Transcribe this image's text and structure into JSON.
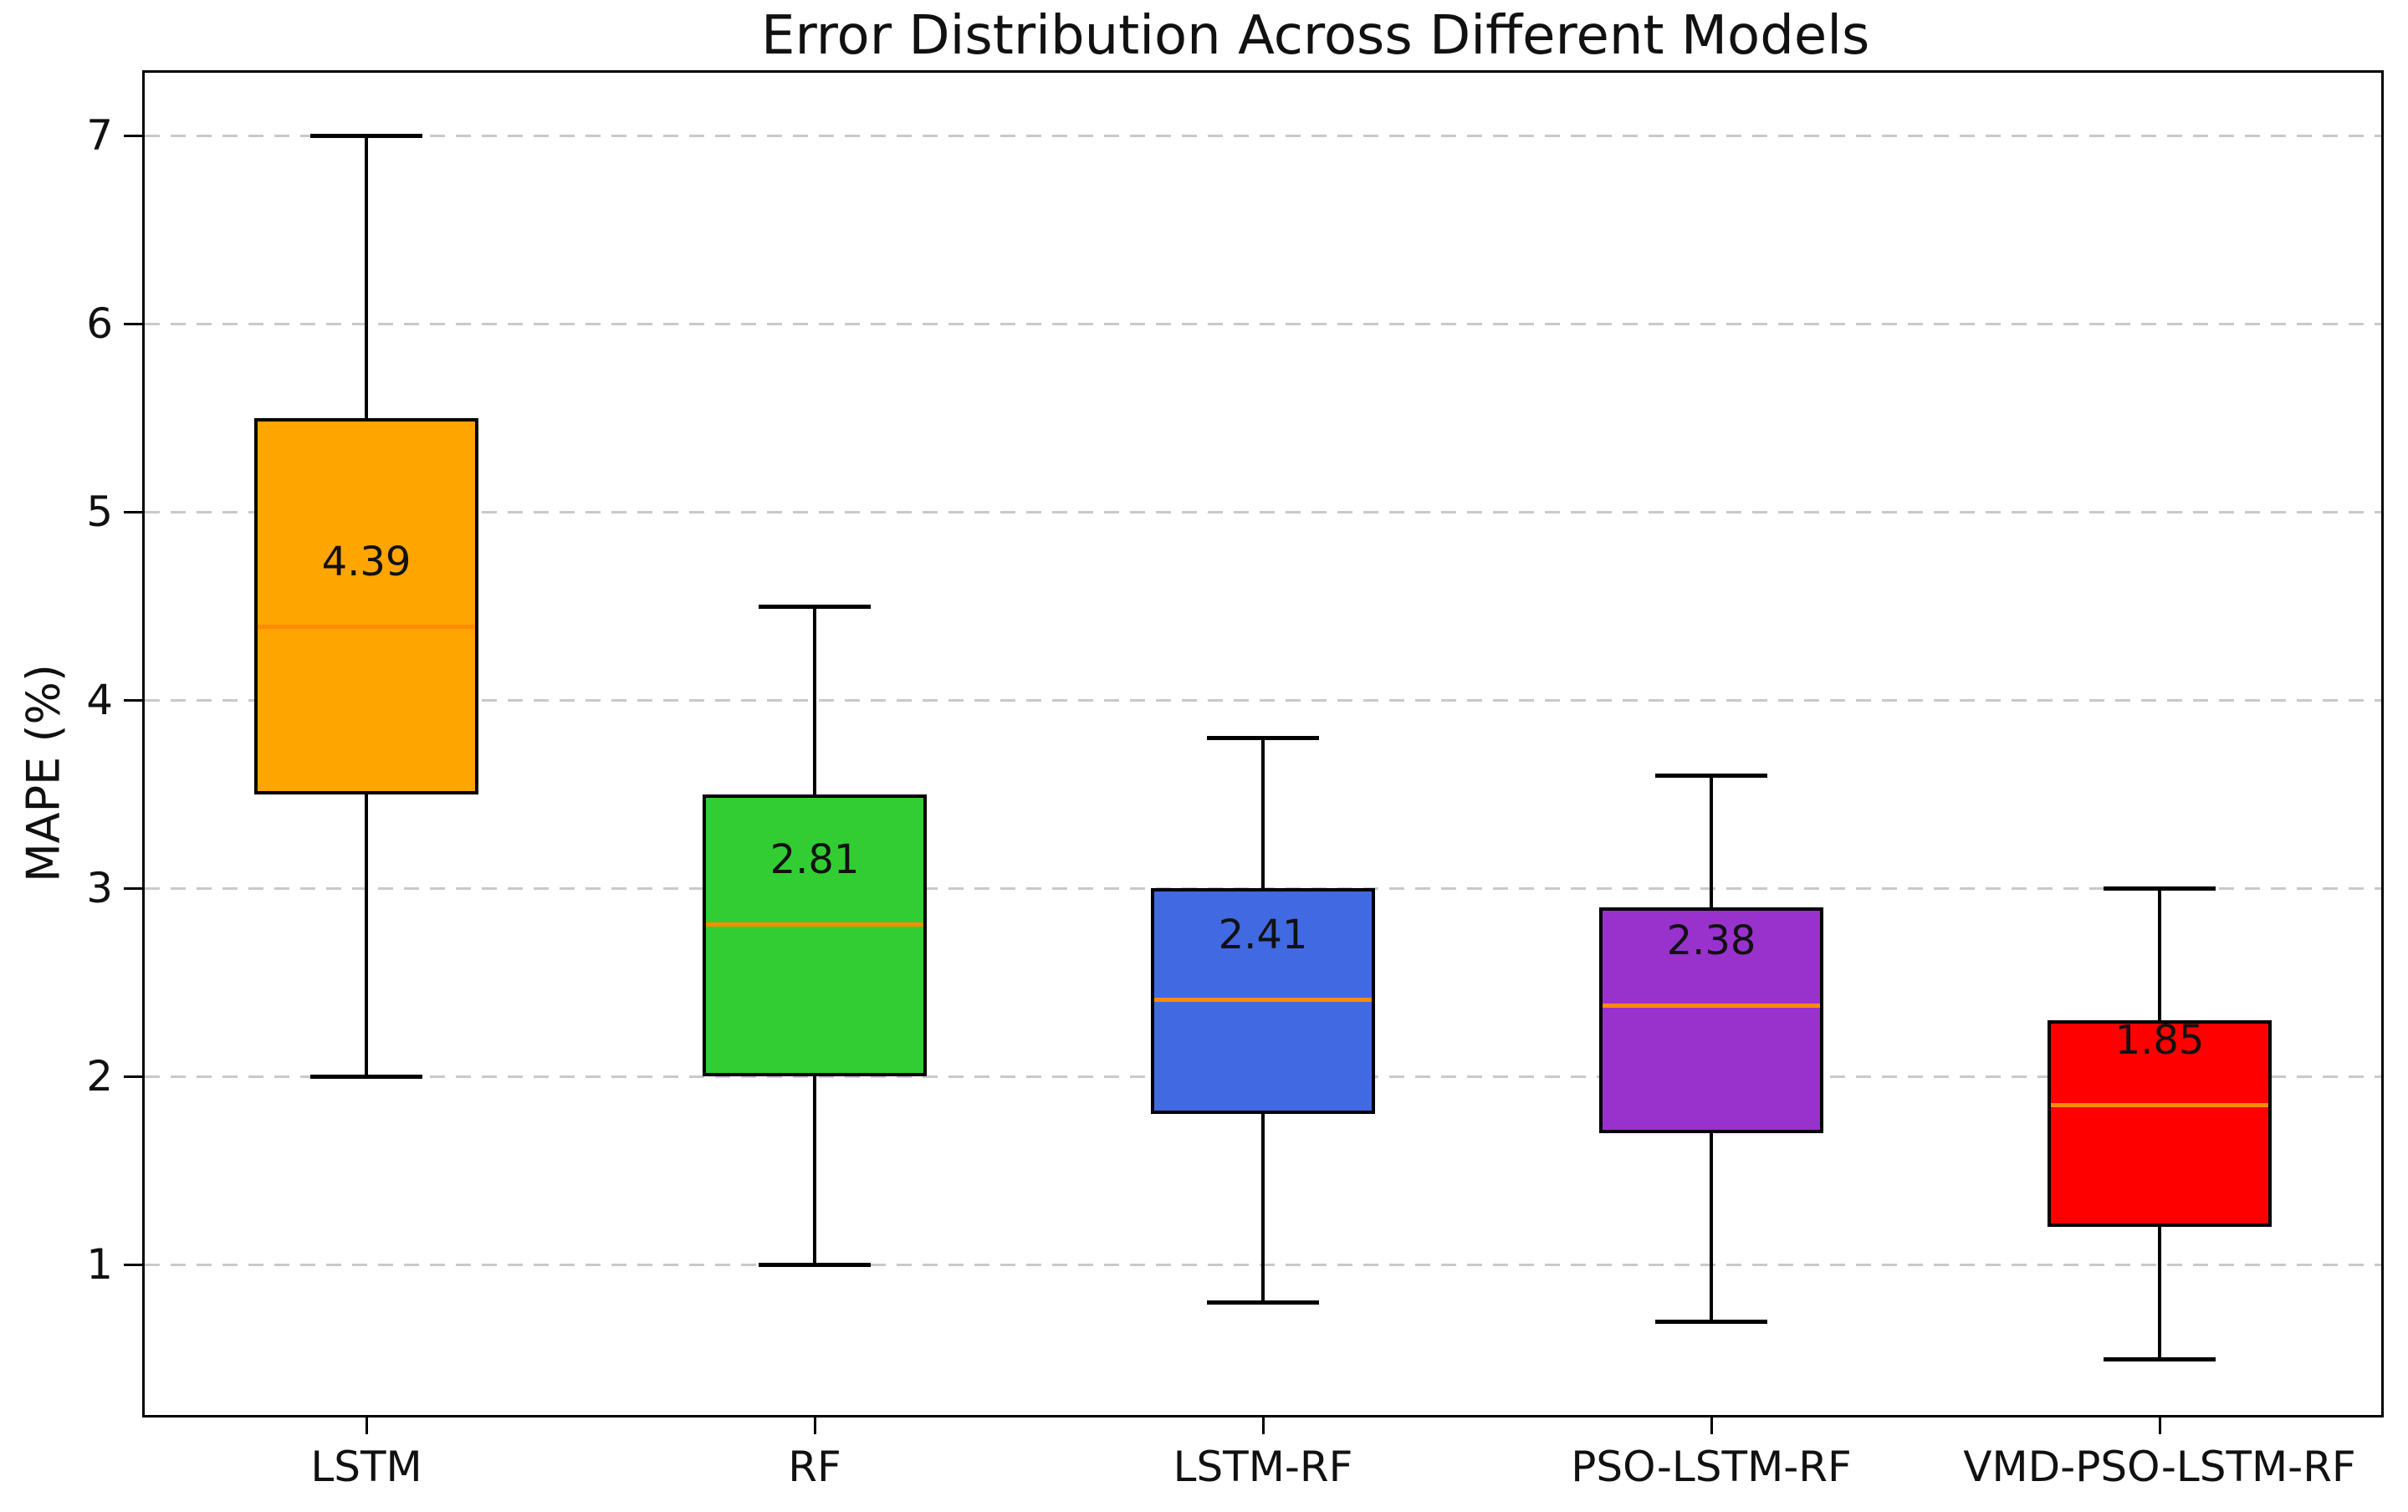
{
  "chart_data": {
    "type": "boxplot",
    "title": "Error Distribution Across Different Models",
    "ylabel": "MAPE (%)",
    "xlabel": "",
    "categories": [
      "LSTM",
      "RF",
      "LSTM-RF",
      "PSO-LSTM-RF",
      "VMD-PSO-LSTM-RF"
    ],
    "y_ticks": [
      "1",
      "2",
      "3",
      "4",
      "5",
      "6",
      "7"
    ],
    "ylim": [
      0.19,
      7.35
    ],
    "grid": {
      "axis": "y",
      "style": "dashed",
      "color": "#c9c9c9"
    },
    "colors": {
      "median_line": "#FF8C00",
      "box_edge": "#000000",
      "whisker": "#000000",
      "text": "#111111",
      "background": "#FFFFFF"
    },
    "series": [
      {
        "label": "LSTM",
        "whisker_low": 2.0,
        "q1": 3.5,
        "median": 4.39,
        "q3": 5.5,
        "whisker_high": 7.0,
        "color": "#FFA500",
        "median_label": "4.39"
      },
      {
        "label": "RF",
        "whisker_low": 1.0,
        "q1": 2.0,
        "median": 2.81,
        "q3": 3.5,
        "whisker_high": 4.5,
        "color": "#32CD32",
        "median_label": "2.81"
      },
      {
        "label": "LSTM-RF",
        "whisker_low": 0.8,
        "q1": 1.8,
        "median": 2.41,
        "q3": 3.0,
        "whisker_high": 3.8,
        "color": "#4169E1",
        "median_label": "2.41"
      },
      {
        "label": "PSO-LSTM-RF",
        "whisker_low": 0.7,
        "q1": 1.7,
        "median": 2.38,
        "q3": 2.9,
        "whisker_high": 3.6,
        "color": "#9932CC",
        "median_label": "2.38"
      },
      {
        "label": "VMD-PSO-LSTM-RF",
        "whisker_low": 0.5,
        "q1": 1.2,
        "median": 1.85,
        "q3": 2.3,
        "whisker_high": 3.0,
        "color": "#FF0000",
        "median_label": "1.85"
      }
    ]
  }
}
